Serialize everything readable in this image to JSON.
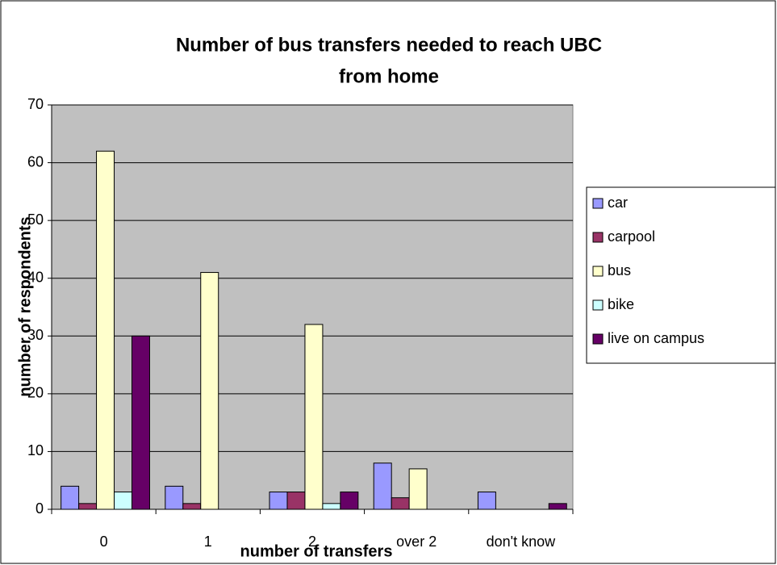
{
  "chart_data": {
    "type": "bar",
    "title": [
      "Number of bus transfers needed to reach UBC",
      "from home"
    ],
    "x_label": "number of transfers",
    "y_label": "number of respondents",
    "categories": [
      "0",
      "1",
      "2",
      "over 2",
      "don't know"
    ],
    "series": [
      {
        "name": "car",
        "color": "#9999ff",
        "values": [
          4,
          4,
          3,
          8,
          3
        ]
      },
      {
        "name": "carpool",
        "color": "#993366",
        "values": [
          1,
          1,
          3,
          2,
          0
        ]
      },
      {
        "name": "bus",
        "color": "#ffffcc",
        "values": [
          62,
          41,
          32,
          7,
          0
        ]
      },
      {
        "name": "bike",
        "color": "#ccffff",
        "values": [
          3,
          0,
          1,
          0,
          0
        ]
      },
      {
        "name": "live on campus",
        "color": "#660066",
        "values": [
          30,
          0,
          3,
          0,
          1
        ]
      }
    ],
    "ylim": [
      0,
      70
    ],
    "yticks": [
      0,
      10,
      20,
      30,
      40,
      50,
      60,
      70
    ],
    "grid": true,
    "legend": "right"
  }
}
